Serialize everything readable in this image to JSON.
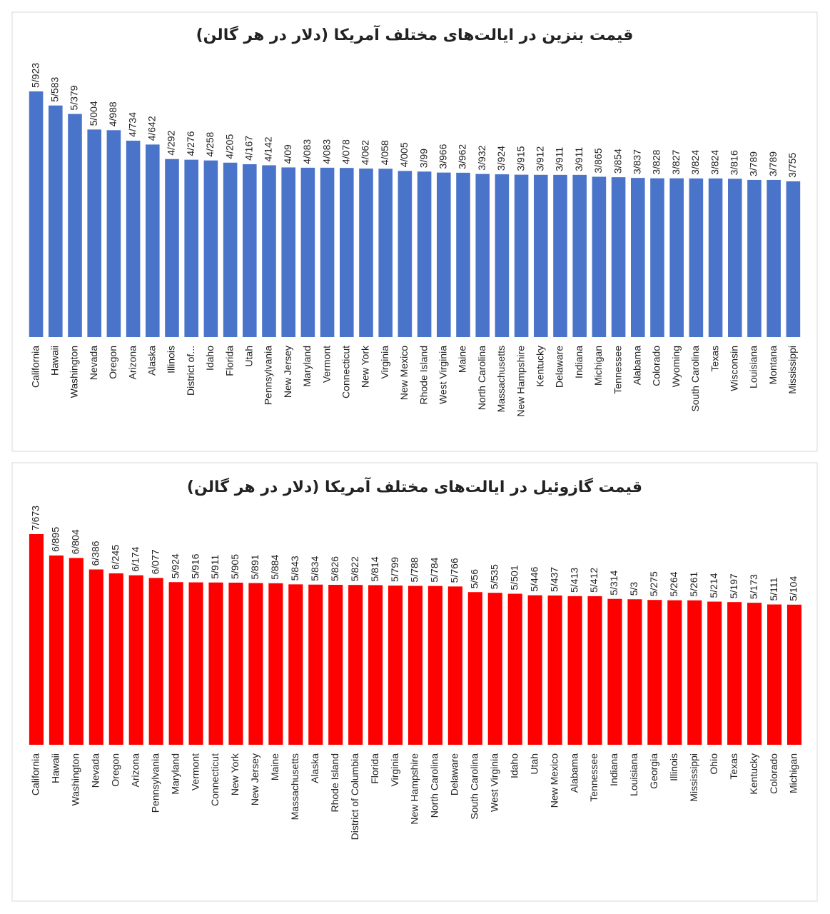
{
  "chart_data": [
    {
      "type": "bar",
      "title": "قیمت بنزین در ایالت‌های مختلف آمریکا (دلار در هر گالن)",
      "color": "#4a74c9",
      "categories": [
        "California",
        "Hawaii",
        "Washington",
        "Nevada",
        "Oregon",
        "Arizona",
        "Alaska",
        "Illinois",
        "District of...",
        "Idaho",
        "Florida",
        "Utah",
        "Pennsylvania",
        "New Jersey",
        "Maryland",
        "Vermont",
        "Connecticut",
        "New York",
        "Virginia",
        "New Mexico",
        "Rhode Island",
        "West Virginia",
        "Maine",
        "North Carolina",
        "Massachusetts",
        "New Hampshire",
        "Kentucky",
        "Delaware",
        "Indiana",
        "Michigan",
        "Tennessee",
        "Alabama",
        "Colorado",
        "Wyoming",
        "South Carolina",
        "Texas",
        "Wisconsin",
        "Louisiana",
        "Montana",
        "Mississippi"
      ],
      "values": [
        5.923,
        5.583,
        5.379,
        5.004,
        4.988,
        4.734,
        4.642,
        4.292,
        4.276,
        4.258,
        4.205,
        4.167,
        4.142,
        4.09,
        4.083,
        4.083,
        4.078,
        4.062,
        4.058,
        4.005,
        3.99,
        3.966,
        3.962,
        3.932,
        3.924,
        3.915,
        3.912,
        3.911,
        3.911,
        3.865,
        3.854,
        3.837,
        3.828,
        3.827,
        3.824,
        3.824,
        3.816,
        3.789,
        3.789,
        3.755
      ],
      "value_labels": [
        "5/923",
        "5/583",
        "5/379",
        "5/004",
        "4/988",
        "4/734",
        "4/642",
        "4/292",
        "4/276",
        "4/258",
        "4/205",
        "4/167",
        "4/142",
        "4/09",
        "4/083",
        "4/083",
        "4/078",
        "4/062",
        "4/058",
        "4/005",
        "3/99",
        "3/966",
        "3/962",
        "3/932",
        "3/924",
        "3/915",
        "3/912",
        "3/911",
        "3/911",
        "3/865",
        "3/854",
        "3/837",
        "3/828",
        "3/827",
        "3/824",
        "3/824",
        "3/816",
        "3/789",
        "3/789",
        "3/755"
      ]
    },
    {
      "type": "bar",
      "title": "قیمت گازوئیل در ایالت‌های مختلف آمریکا (دلار در هر گالن)",
      "color": "#ff0000",
      "categories": [
        "California",
        "Hawaii",
        "Washington",
        "Nevada",
        "Oregon",
        "Arizona",
        "Pennsylvania",
        "Maryland",
        "Vermont",
        "Connecticut",
        "New York",
        "New Jersey",
        "Maine",
        "Massachusetts",
        "Alaska",
        "Rhode Island",
        "District of Columbia",
        "Florida",
        "Virginia",
        "New Hampshire",
        "North Carolina",
        "Delaware",
        "South Carolina",
        "West Virginia",
        "Idaho",
        "Utah",
        "New Mexico",
        "Alabama",
        "Tennessee",
        "Indiana",
        "Louisiana",
        "Georgia",
        "Illinois",
        "Mississippi",
        "Ohio",
        "Texas",
        "Kentucky",
        "Colorado",
        "Michigan"
      ],
      "values": [
        7.673,
        6.895,
        6.804,
        6.386,
        6.245,
        6.174,
        6.077,
        5.924,
        5.916,
        5.911,
        5.905,
        5.891,
        5.884,
        5.843,
        5.834,
        5.826,
        5.822,
        5.814,
        5.799,
        5.788,
        5.784,
        5.766,
        5.56,
        5.535,
        5.501,
        5.446,
        5.437,
        5.413,
        5.412,
        5.314,
        5.3,
        5.275,
        5.264,
        5.261,
        5.214,
        5.197,
        5.173,
        5.111,
        5.104
      ],
      "value_labels": [
        "7/673",
        "6/895",
        "6/804",
        "6/386",
        "6/245",
        "6/174",
        "6/077",
        "5/924",
        "5/916",
        "5/911",
        "5/905",
        "5/891",
        "5/884",
        "5/843",
        "5/834",
        "5/826",
        "5/822",
        "5/814",
        "5/799",
        "5/788",
        "5/784",
        "5/766",
        "5/56",
        "5/535",
        "5/501",
        "5/446",
        "5/437",
        "5/413",
        "5/412",
        "5/314",
        "5/3",
        "5/275",
        "5/264",
        "5/261",
        "5/214",
        "5/197",
        "5/173",
        "5/111",
        "5/104"
      ]
    }
  ]
}
